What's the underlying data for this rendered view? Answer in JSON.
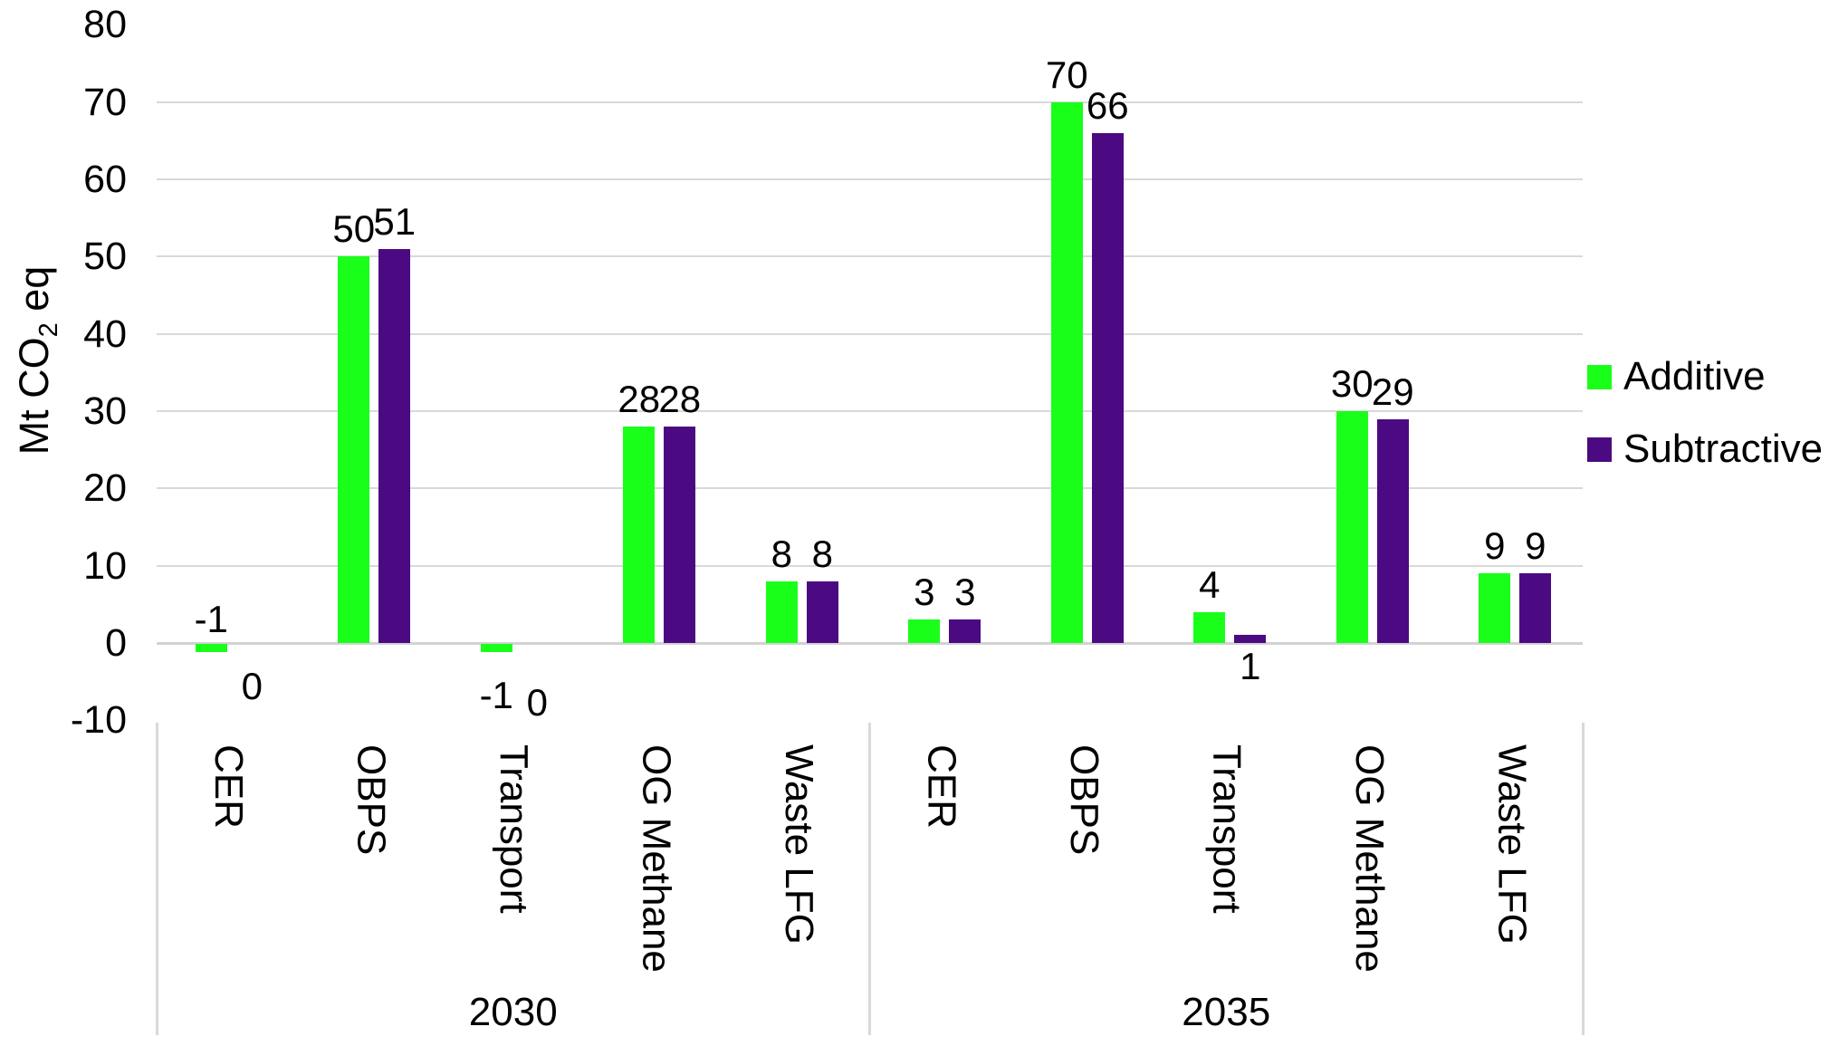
{
  "chart_data": {
    "type": "bar",
    "title": "",
    "ylabel": {
      "pre": "Mt CO",
      "sub": "2",
      "post": " eq"
    },
    "y_axis": {
      "ticks": [
        80,
        70,
        60,
        50,
        40,
        30,
        20,
        10,
        0,
        -10
      ],
      "gridlines": [
        70,
        60,
        50,
        40,
        30,
        20,
        10,
        0
      ],
      "ylim": [
        -10,
        80
      ],
      "grid": true
    },
    "series": [
      {
        "name": "Additive",
        "color": "#1AFF1A"
      },
      {
        "name": "Subtractive",
        "color": "#4B0982"
      }
    ],
    "legend_position": "right",
    "groups": [
      {
        "label": "2030",
        "items": [
          {
            "category": "CER",
            "values": [
              {
                "v": -1,
                "dy": -4
              },
              {
                "v": 0,
                "dy": 26
              }
            ]
          },
          {
            "category": "OBPS",
            "values": [
              {
                "v": 50
              },
              {
                "v": 51
              }
            ]
          },
          {
            "category": "Transport",
            "values": [
              {
                "v": -1,
                "dy": 36
              },
              {
                "v": 0,
                "dy": 44
              }
            ]
          },
          {
            "category": "OG Methane",
            "values": [
              {
                "v": 28
              },
              {
                "v": 28
              }
            ]
          },
          {
            "category": "Waste LFG",
            "values": [
              {
                "v": 8
              },
              {
                "v": 8
              }
            ]
          }
        ]
      },
      {
        "label": "2035",
        "items": [
          {
            "category": "CER",
            "values": [
              {
                "v": 3
              },
              {
                "v": 3
              }
            ]
          },
          {
            "category": "OBPS",
            "values": [
              {
                "v": 70
              },
              {
                "v": 66
              }
            ]
          },
          {
            "category": "Transport",
            "values": [
              {
                "v": 4
              },
              {
                "v": 1,
                "dy": 4
              }
            ]
          },
          {
            "category": "OG Methane",
            "values": [
              {
                "v": 30
              },
              {
                "v": 29
              }
            ]
          },
          {
            "category": "Waste LFG",
            "values": [
              {
                "v": 9
              },
              {
                "v": 9
              }
            ]
          }
        ]
      }
    ]
  }
}
